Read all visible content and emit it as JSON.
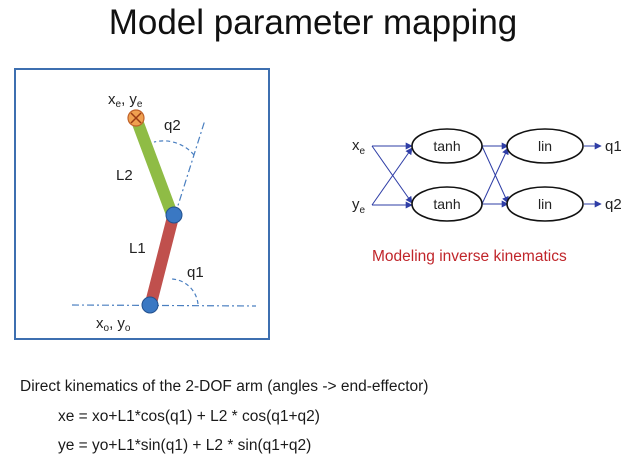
{
  "title": "Model parameter mapping",
  "arm": {
    "end_label": "x",
    "end_sub_x": "e",
    "end_sub_y": "e",
    "origin_sub_x": "o",
    "origin_sub_y": "o",
    "link2_label": "L2",
    "link1_label": "L1",
    "angle2_label": "q2",
    "angle1_label": "q1",
    "link1_color": "#c0504d",
    "link2_color": "#8fbc45",
    "joint_color": "#3a78c3",
    "end_color": "#f0a050"
  },
  "network": {
    "input1_base": "x",
    "input1_sub": "e",
    "input2_base": "y",
    "input2_sub": "e",
    "hidden_top": "tanh",
    "hidden_bottom": "tanh",
    "out_top": "lin",
    "out_bottom": "lin",
    "output1": "q1",
    "output2": "q2",
    "arrow_color": "#2e3da6"
  },
  "caption": "Modeling inverse kinematics",
  "equations": {
    "title": "Direct kinematics of the 2-DOF arm (angles -> end-effector)",
    "xe": "xe = xo+L1*cos(q1) + L2 * cos(q1+q2)",
    "ye": "ye = yo+L1*sin(q1) + L2 * sin(q1+q2)"
  }
}
